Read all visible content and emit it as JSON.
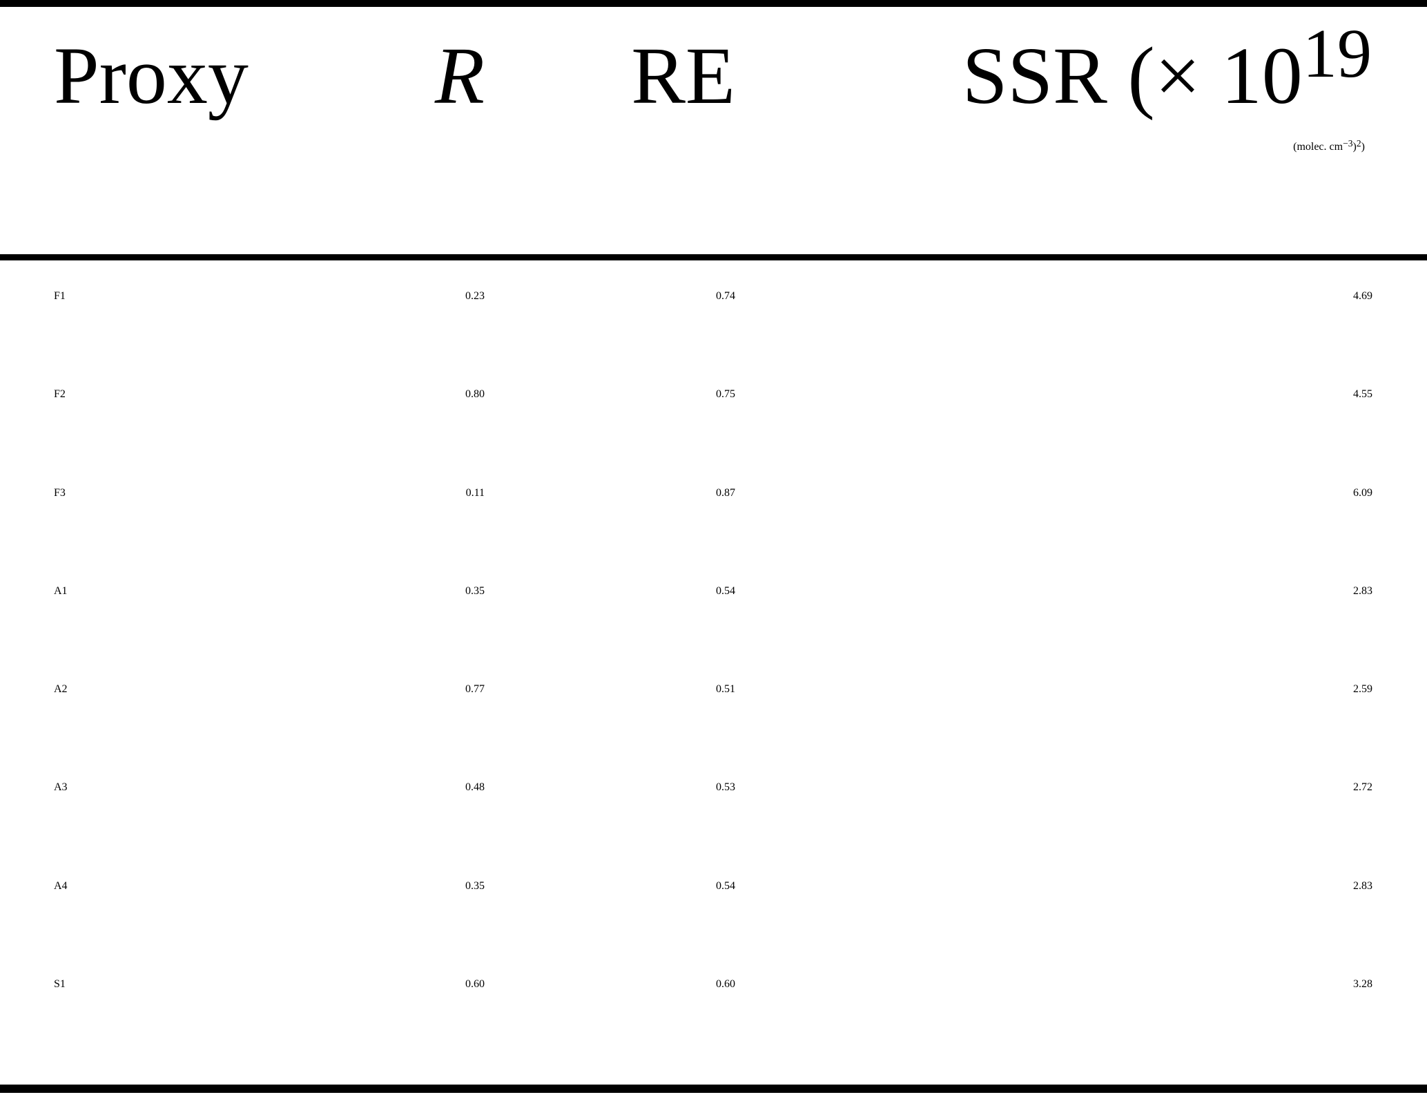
{
  "table": {
    "columns": {
      "proxy": "Proxy",
      "r": "R",
      "re": "RE",
      "ssr_line1_main": "SSR (× 10",
      "ssr_line1_sup": "19",
      "ssr_line2_open": "(molec. cm",
      "ssr_line2_sup1": "−3",
      "ssr_line2_close1": ")",
      "ssr_line2_sup2": "2",
      "ssr_line2_close2": ")"
    },
    "rows": [
      {
        "proxy": "F1",
        "r": "0.23",
        "re": "0.74",
        "ssr": "4.69"
      },
      {
        "proxy": "F2",
        "r": "0.80",
        "re": "0.75",
        "ssr": "4.55"
      },
      {
        "proxy": "F3",
        "r": "0.11",
        "re": "0.87",
        "ssr": "6.09"
      },
      {
        "proxy": "A1",
        "r": "0.35",
        "re": "0.54",
        "ssr": "2.83"
      },
      {
        "proxy": "A2",
        "r": "0.77",
        "re": "0.51",
        "ssr": "2.59"
      },
      {
        "proxy": "A3",
        "r": "0.48",
        "re": "0.53",
        "ssr": "2.72"
      },
      {
        "proxy": "A4",
        "r": "0.35",
        "re": "0.54",
        "ssr": "2.83"
      },
      {
        "proxy": "S1",
        "r": "0.60",
        "re": "0.60",
        "ssr": "3.28"
      }
    ]
  },
  "colors": {
    "background": "#ffffff",
    "text": "#000000",
    "rule": "#000000"
  }
}
